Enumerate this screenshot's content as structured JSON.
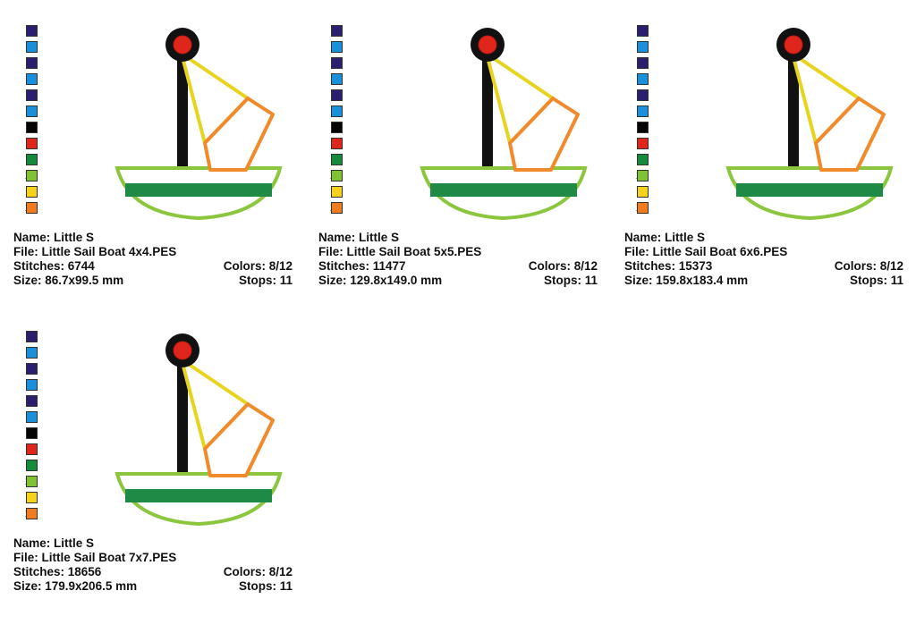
{
  "color_palette": [
    {
      "number": "1",
      "color": "#2a1f6e"
    },
    {
      "number": "2",
      "color": "#1a8fdc"
    },
    {
      "number": "3",
      "color": "#2a1f6e"
    },
    {
      "number": "4",
      "color": "#1a8fdc"
    },
    {
      "number": "5",
      "color": "#2a1f6e"
    },
    {
      "number": "6",
      "color": "#1a8fdc"
    },
    {
      "number": "7",
      "color": "#050505"
    },
    {
      "number": "8",
      "color": "#e0261c"
    },
    {
      "number": "9",
      "color": "#168a3c"
    },
    {
      "number": "10",
      "color": "#7fc234"
    },
    {
      "number": "11",
      "color": "#f7d21a"
    },
    {
      "number": "12",
      "color": "#f07c22"
    }
  ],
  "design_colors": {
    "mast": "#111111",
    "ball": "#e0261c",
    "sail_edge": "#e6d41f",
    "sail_band": "#f08a2a",
    "hull": "#8cc63f",
    "stripe": "#1f8a45"
  },
  "designs": [
    {
      "name": "Name: Little S",
      "file": "File: Little Sail Boat 4x4.PES",
      "stitches": "Stitches: 6744",
      "colors": "Colors: 8/12",
      "size": "Size: 86.7x99.5 mm",
      "stops": "Stops: 11"
    },
    {
      "name": "Name: Little S",
      "file": "File: Little Sail Boat 5x5.PES",
      "stitches": "Stitches: 11477",
      "colors": "Colors: 8/12",
      "size": "Size: 129.8x149.0 mm",
      "stops": "Stops: 11"
    },
    {
      "name": "Name: Little S",
      "file": "File: Little Sail Boat 6x6.PES",
      "stitches": "Stitches: 15373",
      "colors": "Colors: 8/12",
      "size": "Size: 159.8x183.4 mm",
      "stops": "Stops: 11"
    },
    {
      "name": "Name: Little S",
      "file": "File: Little Sail Boat 7x7.PES",
      "stitches": "Stitches: 18656",
      "colors": "Colors: 8/12",
      "size": "Size: 179.9x206.5 mm",
      "stops": "Stops: 11"
    }
  ]
}
